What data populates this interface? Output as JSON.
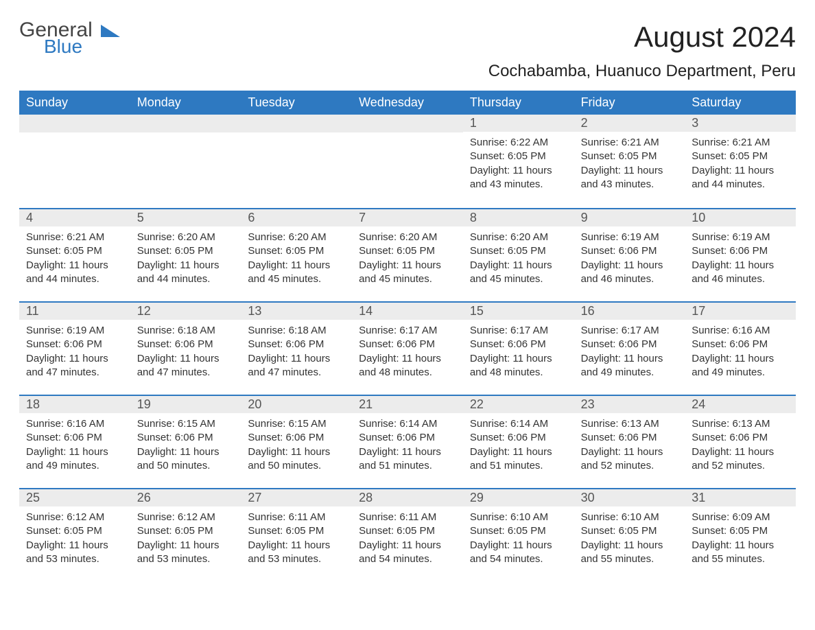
{
  "logo": {
    "text1": "General",
    "text2": "Blue",
    "brand_color": "#2e79c1"
  },
  "title": "August 2024",
  "subtitle": "Cochabamba, Huanuco Department, Peru",
  "colors": {
    "header_bg": "#2e79c1",
    "header_text": "#ffffff",
    "daynum_bg": "#ececec",
    "daynum_text": "#555555",
    "body_text": "#333333",
    "page_bg": "#ffffff",
    "row_border": "#2e79c1"
  },
  "typography": {
    "title_fontsize": 42,
    "subtitle_fontsize": 24,
    "dayheader_fontsize": 18,
    "daynum_fontsize": 18,
    "cell_fontsize": 15,
    "font_family": "Arial"
  },
  "day_headers": [
    "Sunday",
    "Monday",
    "Tuesday",
    "Wednesday",
    "Thursday",
    "Friday",
    "Saturday"
  ],
  "labels": {
    "sunrise": "Sunrise",
    "sunset": "Sunset",
    "daylight": "Daylight"
  },
  "weeks": [
    [
      null,
      null,
      null,
      null,
      {
        "n": "1",
        "sunrise": "6:22 AM",
        "sunset": "6:05 PM",
        "daylight": "11 hours and 43 minutes."
      },
      {
        "n": "2",
        "sunrise": "6:21 AM",
        "sunset": "6:05 PM",
        "daylight": "11 hours and 43 minutes."
      },
      {
        "n": "3",
        "sunrise": "6:21 AM",
        "sunset": "6:05 PM",
        "daylight": "11 hours and 44 minutes."
      }
    ],
    [
      {
        "n": "4",
        "sunrise": "6:21 AM",
        "sunset": "6:05 PM",
        "daylight": "11 hours and 44 minutes."
      },
      {
        "n": "5",
        "sunrise": "6:20 AM",
        "sunset": "6:05 PM",
        "daylight": "11 hours and 44 minutes."
      },
      {
        "n": "6",
        "sunrise": "6:20 AM",
        "sunset": "6:05 PM",
        "daylight": "11 hours and 45 minutes."
      },
      {
        "n": "7",
        "sunrise": "6:20 AM",
        "sunset": "6:05 PM",
        "daylight": "11 hours and 45 minutes."
      },
      {
        "n": "8",
        "sunrise": "6:20 AM",
        "sunset": "6:05 PM",
        "daylight": "11 hours and 45 minutes."
      },
      {
        "n": "9",
        "sunrise": "6:19 AM",
        "sunset": "6:06 PM",
        "daylight": "11 hours and 46 minutes."
      },
      {
        "n": "10",
        "sunrise": "6:19 AM",
        "sunset": "6:06 PM",
        "daylight": "11 hours and 46 minutes."
      }
    ],
    [
      {
        "n": "11",
        "sunrise": "6:19 AM",
        "sunset": "6:06 PM",
        "daylight": "11 hours and 47 minutes."
      },
      {
        "n": "12",
        "sunrise": "6:18 AM",
        "sunset": "6:06 PM",
        "daylight": "11 hours and 47 minutes."
      },
      {
        "n": "13",
        "sunrise": "6:18 AM",
        "sunset": "6:06 PM",
        "daylight": "11 hours and 47 minutes."
      },
      {
        "n": "14",
        "sunrise": "6:17 AM",
        "sunset": "6:06 PM",
        "daylight": "11 hours and 48 minutes."
      },
      {
        "n": "15",
        "sunrise": "6:17 AM",
        "sunset": "6:06 PM",
        "daylight": "11 hours and 48 minutes."
      },
      {
        "n": "16",
        "sunrise": "6:17 AM",
        "sunset": "6:06 PM",
        "daylight": "11 hours and 49 minutes."
      },
      {
        "n": "17",
        "sunrise": "6:16 AM",
        "sunset": "6:06 PM",
        "daylight": "11 hours and 49 minutes."
      }
    ],
    [
      {
        "n": "18",
        "sunrise": "6:16 AM",
        "sunset": "6:06 PM",
        "daylight": "11 hours and 49 minutes."
      },
      {
        "n": "19",
        "sunrise": "6:15 AM",
        "sunset": "6:06 PM",
        "daylight": "11 hours and 50 minutes."
      },
      {
        "n": "20",
        "sunrise": "6:15 AM",
        "sunset": "6:06 PM",
        "daylight": "11 hours and 50 minutes."
      },
      {
        "n": "21",
        "sunrise": "6:14 AM",
        "sunset": "6:06 PM",
        "daylight": "11 hours and 51 minutes."
      },
      {
        "n": "22",
        "sunrise": "6:14 AM",
        "sunset": "6:06 PM",
        "daylight": "11 hours and 51 minutes."
      },
      {
        "n": "23",
        "sunrise": "6:13 AM",
        "sunset": "6:06 PM",
        "daylight": "11 hours and 52 minutes."
      },
      {
        "n": "24",
        "sunrise": "6:13 AM",
        "sunset": "6:06 PM",
        "daylight": "11 hours and 52 minutes."
      }
    ],
    [
      {
        "n": "25",
        "sunrise": "6:12 AM",
        "sunset": "6:05 PM",
        "daylight": "11 hours and 53 minutes."
      },
      {
        "n": "26",
        "sunrise": "6:12 AM",
        "sunset": "6:05 PM",
        "daylight": "11 hours and 53 minutes."
      },
      {
        "n": "27",
        "sunrise": "6:11 AM",
        "sunset": "6:05 PM",
        "daylight": "11 hours and 53 minutes."
      },
      {
        "n": "28",
        "sunrise": "6:11 AM",
        "sunset": "6:05 PM",
        "daylight": "11 hours and 54 minutes."
      },
      {
        "n": "29",
        "sunrise": "6:10 AM",
        "sunset": "6:05 PM",
        "daylight": "11 hours and 54 minutes."
      },
      {
        "n": "30",
        "sunrise": "6:10 AM",
        "sunset": "6:05 PM",
        "daylight": "11 hours and 55 minutes."
      },
      {
        "n": "31",
        "sunrise": "6:09 AM",
        "sunset": "6:05 PM",
        "daylight": "11 hours and 55 minutes."
      }
    ]
  ]
}
